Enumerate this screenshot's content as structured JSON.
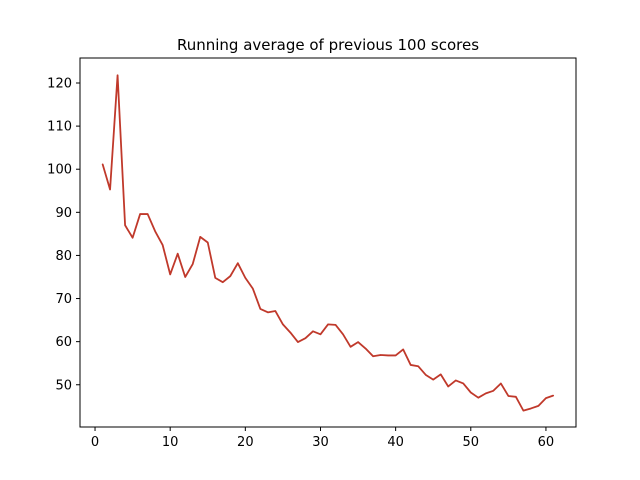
{
  "chart_data": {
    "type": "line",
    "title": "Running average of previous 100 scores",
    "xlabel": "",
    "ylabel": "",
    "xlim": [
      -2.0,
      64.0
    ],
    "ylim": [
      40.2,
      125.8
    ],
    "x_ticks": [
      0,
      10,
      20,
      30,
      40,
      50,
      60
    ],
    "y_ticks": [
      50,
      60,
      70,
      80,
      90,
      100,
      110,
      120
    ],
    "grid": false,
    "legend": "none",
    "line_color": "#c0392b",
    "series": [
      {
        "x": [
          1,
          2,
          3,
          4,
          5,
          6,
          7,
          8,
          9,
          10,
          11,
          12,
          13,
          14,
          15,
          16,
          17,
          18,
          19,
          20,
          21,
          22,
          23,
          24,
          25,
          26,
          27,
          28,
          29,
          30,
          31,
          32,
          33,
          34,
          35,
          36,
          37,
          38,
          39,
          40,
          41,
          42,
          43,
          44,
          45,
          46,
          47,
          48,
          49,
          50,
          51,
          52,
          53,
          54,
          55,
          56,
          57,
          58,
          59,
          60,
          61
        ],
        "values": [
          101.2,
          95.3,
          121.8,
          87.0,
          84.1,
          89.6,
          89.6,
          85.6,
          82.4,
          75.6,
          80.4,
          75.0,
          78.0,
          84.3,
          83.0,
          74.8,
          73.8,
          75.2,
          78.2,
          74.8,
          72.3,
          67.6,
          66.8,
          67.1,
          64.0,
          62.1,
          59.9,
          60.8,
          62.4,
          61.7,
          64.0,
          63.9,
          61.7,
          58.8,
          59.9,
          58.4,
          56.6,
          56.9,
          56.8,
          56.8,
          58.2,
          54.6,
          54.3,
          52.3,
          51.2,
          52.4,
          49.6,
          51.0,
          50.3,
          48.2,
          47.0,
          48.0,
          48.6,
          50.3,
          47.4,
          47.2,
          44.0,
          44.5,
          45.1,
          46.9,
          47.5
        ]
      }
    ]
  }
}
